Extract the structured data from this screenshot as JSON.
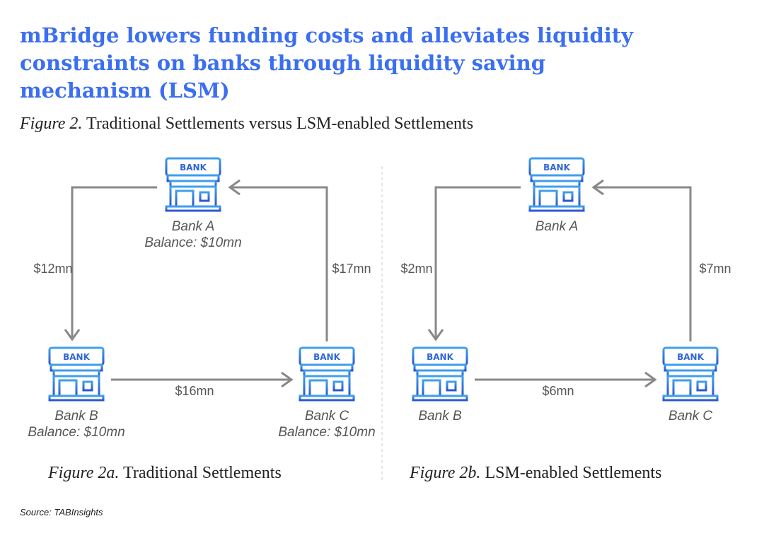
{
  "title_lines": [
    "mBridge lowers funding costs and alleviates liquidity",
    "constraints on banks through liquidity saving",
    "mechanism (LSM)"
  ],
  "figure": {
    "label": "Figure 2.",
    "text": "Traditional Settlements versus LSM-enabled Settlements"
  },
  "icon_label": "BANK",
  "panels": [
    {
      "nodes": [
        {
          "label": "Bank A",
          "balance": "Balance: $10mn"
        },
        {
          "label": "Bank B",
          "balance": "Balance: $10mn"
        },
        {
          "label": "Bank C",
          "balance": "Balance: $10mn"
        }
      ],
      "edges": [
        {
          "amount": "$12mn"
        },
        {
          "amount": "$17mn"
        },
        {
          "amount": "$16mn"
        }
      ],
      "caption": {
        "label": "Figure 2a.",
        "text": "Traditional Settlements"
      }
    },
    {
      "nodes": [
        {
          "label": "Bank A"
        },
        {
          "label": "Bank B"
        },
        {
          "label": "Bank C"
        }
      ],
      "edges": [
        {
          "amount": "$2mn"
        },
        {
          "amount": "$7mn"
        },
        {
          "amount": "$6mn"
        }
      ],
      "caption": {
        "label": "Figure 2b.",
        "text": "LSM-enabled Settlements"
      }
    }
  ],
  "source": "Source: TABInsights"
}
